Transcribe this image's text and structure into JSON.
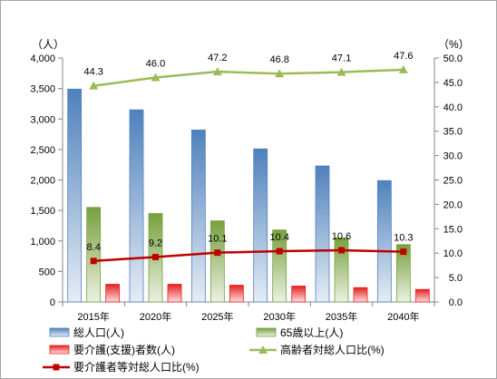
{
  "chart_data": {
    "type": "bar",
    "categories": [
      "2015年",
      "2020年",
      "2025年",
      "2030年",
      "2035年",
      "2040年"
    ],
    "left_axis": {
      "unit": "（人）",
      "ylim": [
        0,
        4000
      ],
      "ticks": [
        "0",
        "500",
        "1,000",
        "1,500",
        "2,000",
        "2,500",
        "3,000",
        "3,500",
        "4,000"
      ]
    },
    "right_axis": {
      "unit": "（%）",
      "ylim": [
        0,
        50
      ],
      "ticks": [
        "0.0",
        "5.0",
        "10.0",
        "15.0",
        "20.0",
        "25.0",
        "30.0",
        "35.0",
        "40.0",
        "45.0",
        "50.0"
      ]
    },
    "series": [
      {
        "name": "総人口(人)",
        "type": "bar",
        "axis": "left",
        "color": "#4f81bd",
        "values": [
          3490,
          3150,
          2820,
          2510,
          2230,
          1990
        ]
      },
      {
        "name": "65歳以上(人)",
        "type": "bar",
        "axis": "left",
        "color": "#77a03e",
        "values": [
          1550,
          1450,
          1330,
          1180,
          1050,
          940
        ]
      },
      {
        "name": "要介護(支援)者数(人)",
        "type": "bar",
        "axis": "left",
        "color": "#e62020",
        "values": [
          290,
          290,
          275,
          260,
          235,
          205
        ]
      },
      {
        "name": "高齢者対総人口比(%)",
        "type": "line",
        "axis": "right",
        "color": "#9bbb59",
        "marker": "triangle",
        "values": [
          44.3,
          46.0,
          47.2,
          46.8,
          47.1,
          47.6
        ],
        "labels": [
          "44.3",
          "46.0",
          "47.2",
          "46.8",
          "47.1",
          "47.6"
        ]
      },
      {
        "name": "要介護者等対総人口比(%)",
        "type": "line",
        "axis": "right",
        "color": "#c00000",
        "marker": "square",
        "values": [
          8.4,
          9.2,
          10.1,
          10.4,
          10.6,
          10.3
        ],
        "labels": [
          "8.4",
          "9.2",
          "10.1",
          "10.4",
          "10.6",
          "10.3"
        ]
      }
    ],
    "legend_position": "bottom",
    "grid": false
  }
}
